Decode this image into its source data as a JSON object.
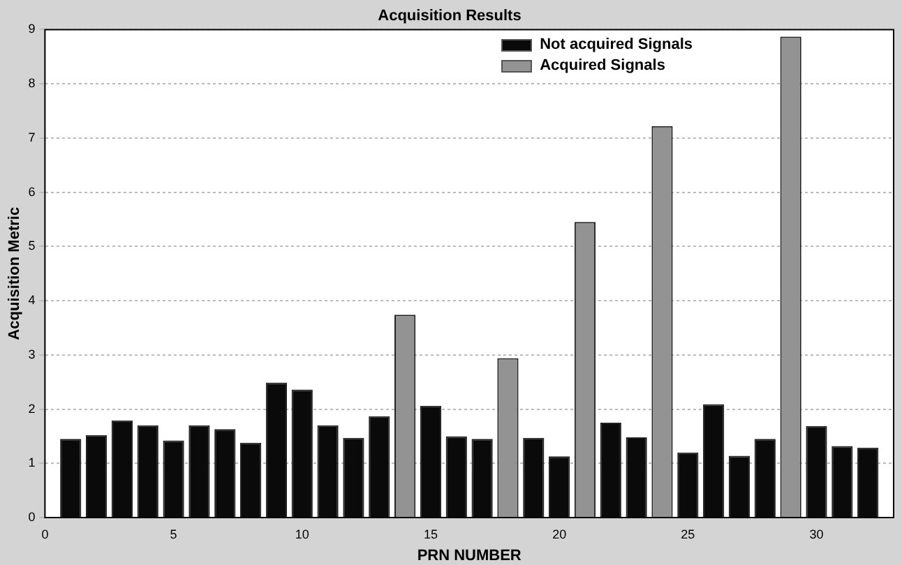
{
  "chart_data": {
    "type": "bar",
    "title": "Acquisition Results",
    "xlabel": "PRN NUMBER",
    "ylabel": "Acquisition Metric",
    "xlim": [
      0,
      33
    ],
    "xticks": [
      0,
      5,
      10,
      15,
      20,
      25,
      30
    ],
    "ylim": [
      0,
      9
    ],
    "yticks": [
      0,
      1,
      2,
      3,
      4,
      5,
      6,
      7,
      8,
      9
    ],
    "grid": "y",
    "legend": "top right",
    "series": [
      {
        "name": "Not acquired Signals",
        "color": "#0a0a0a",
        "x": [
          1,
          2,
          3,
          4,
          5,
          6,
          7,
          8,
          9,
          10,
          11,
          12,
          13,
          15,
          16,
          17,
          19,
          20,
          22,
          23,
          25,
          26,
          27,
          28,
          30,
          31,
          32
        ],
        "values": [
          1.45,
          1.52,
          1.79,
          1.7,
          1.42,
          1.7,
          1.63,
          1.38,
          2.49,
          2.36,
          1.7,
          1.47,
          1.87,
          2.06,
          1.5,
          1.45,
          1.47,
          1.13,
          1.75,
          1.48,
          1.2,
          2.09,
          1.14,
          1.45,
          1.69,
          1.32,
          1.29
        ]
      },
      {
        "name": "Acquired Signals",
        "color": "#939393",
        "x": [
          14,
          18,
          21,
          24,
          29
        ],
        "values": [
          3.74,
          2.94,
          5.45,
          7.22,
          8.87
        ]
      }
    ]
  }
}
